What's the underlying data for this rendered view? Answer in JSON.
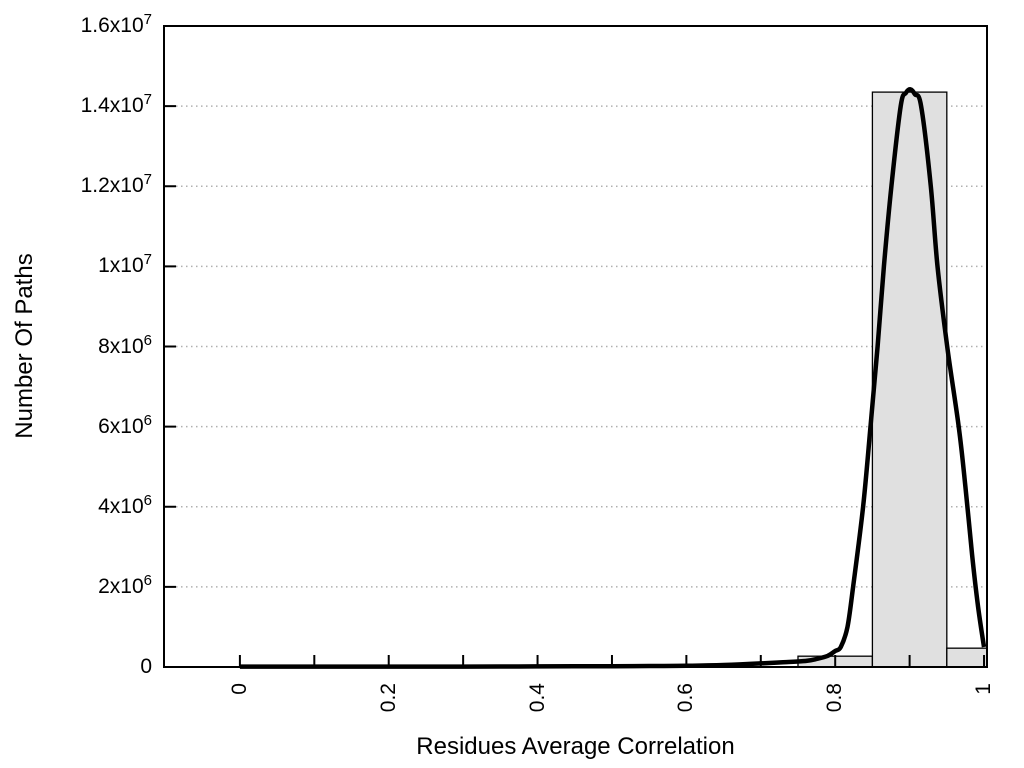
{
  "chart_data": {
    "type": "bar",
    "subtype": "histogram-with-fit-curve",
    "title": "",
    "xlabel": "Residues Average Correlation",
    "ylabel": "Number Of Paths",
    "xlim": [
      -0.102,
      1.004
    ],
    "ylim": [
      0,
      16000000
    ],
    "grid": {
      "horizontal": true,
      "vertical": false,
      "style": "dotted"
    },
    "x_major_ticks": [
      {
        "value": 0,
        "label": "0"
      },
      {
        "value": 0.2,
        "label": "0.2"
      },
      {
        "value": 0.4,
        "label": "0.4"
      },
      {
        "value": 0.6,
        "label": "0.6"
      },
      {
        "value": 0.8,
        "label": "0.8"
      },
      {
        "value": 1,
        "label": "1"
      }
    ],
    "x_minor_ticks": [
      0.1,
      0.3,
      0.5,
      0.7,
      0.9
    ],
    "y_ticks": [
      {
        "value": 0,
        "label": "0",
        "sup": ""
      },
      {
        "value": 2000000,
        "label": "2x10",
        "sup": "6"
      },
      {
        "value": 4000000,
        "label": "4x10",
        "sup": "6"
      },
      {
        "value": 6000000,
        "label": "6x10",
        "sup": "6"
      },
      {
        "value": 8000000,
        "label": "8x10",
        "sup": "6"
      },
      {
        "value": 10000000,
        "label": "1x10",
        "sup": "7"
      },
      {
        "value": 12000000,
        "label": "1.2x10",
        "sup": "7"
      },
      {
        "value": 14000000,
        "label": "1.4x10",
        "sup": "7"
      },
      {
        "value": 16000000,
        "label": "1.6x10",
        "sup": "7"
      }
    ],
    "bars": [
      {
        "x0": 0.75,
        "x1": 0.85,
        "count": 270000
      },
      {
        "x0": 0.85,
        "x1": 0.95,
        "count": 14350000
      },
      {
        "x0": 0.95,
        "x1": 1.05,
        "count": 470000
      }
    ],
    "fit_curve": {
      "description": "bell-shaped fit peaking near x=0.9",
      "peak_x": 0.901,
      "peak_y": 14420000,
      "points": [
        [
          0.0,
          10000
        ],
        [
          0.05,
          10000
        ],
        [
          0.1,
          10000
        ],
        [
          0.15,
          10000
        ],
        [
          0.2,
          10000
        ],
        [
          0.25,
          10000
        ],
        [
          0.3,
          10000
        ],
        [
          0.35,
          12000
        ],
        [
          0.4,
          15000
        ],
        [
          0.45,
          18000
        ],
        [
          0.5,
          20000
        ],
        [
          0.55,
          25000
        ],
        [
          0.6,
          30000
        ],
        [
          0.65,
          50000
        ],
        [
          0.7,
          90000
        ],
        [
          0.73,
          120000
        ],
        [
          0.76,
          150000
        ],
        [
          0.775,
          200000
        ],
        [
          0.79,
          280000
        ],
        [
          0.8,
          400000
        ],
        [
          0.8075,
          500000
        ],
        [
          0.8165,
          1000000
        ],
        [
          0.824,
          2000000
        ],
        [
          0.8375,
          4000000
        ],
        [
          0.8475,
          6000000
        ],
        [
          0.857,
          8000000
        ],
        [
          0.8655,
          10000000
        ],
        [
          0.8755,
          12000000
        ],
        [
          0.888,
          14000000
        ],
        [
          0.895,
          14330000
        ],
        [
          0.901,
          14420000
        ],
        [
          0.907,
          14300000
        ],
        [
          0.9155,
          14000000
        ],
        [
          0.9285,
          12000000
        ],
        [
          0.9375,
          10000000
        ],
        [
          0.9505,
          8000000
        ],
        [
          0.966,
          6000000
        ],
        [
          0.975,
          4500000
        ],
        [
          0.984,
          2800000
        ],
        [
          0.992,
          1500000
        ],
        [
          1.0,
          500000
        ]
      ]
    },
    "colors": {
      "bar_fill": "#e0e0e0",
      "bar_border": "#000000",
      "curve": "#000000",
      "grid": "#b0b0b0",
      "frame": "#000000",
      "text": "#000000",
      "background": "#ffffff"
    }
  }
}
